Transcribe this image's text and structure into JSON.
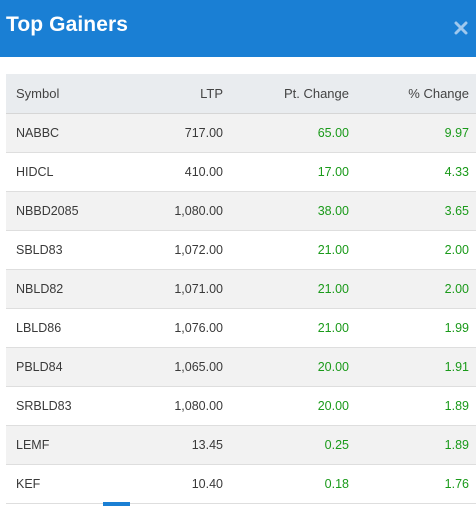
{
  "header": {
    "title": "Top Gainers",
    "close_icon": "close-icon"
  },
  "colors": {
    "header_bg": "#1a7fd4",
    "positive": "#1a9a1a",
    "row_alt": "#f2f2f2",
    "thead_bg": "#e9ecef"
  },
  "table": {
    "columns": [
      "Symbol",
      "LTP",
      "Pt. Change",
      "% Change"
    ],
    "rows": [
      {
        "symbol": "NABBC",
        "ltp": "717.00",
        "pt_change": "65.00",
        "pct_change": "9.97"
      },
      {
        "symbol": "HIDCL",
        "ltp": "410.00",
        "pt_change": "17.00",
        "pct_change": "4.33"
      },
      {
        "symbol": "NBBD2085",
        "ltp": "1,080.00",
        "pt_change": "38.00",
        "pct_change": "3.65"
      },
      {
        "symbol": "SBLD83",
        "ltp": "1,072.00",
        "pt_change": "21.00",
        "pct_change": "2.00"
      },
      {
        "symbol": "NBLD82",
        "ltp": "1,071.00",
        "pt_change": "21.00",
        "pct_change": "2.00"
      },
      {
        "symbol": "LBLD86",
        "ltp": "1,076.00",
        "pt_change": "21.00",
        "pct_change": "1.99"
      },
      {
        "symbol": "PBLD84",
        "ltp": "1,065.00",
        "pt_change": "20.00",
        "pct_change": "1.91"
      },
      {
        "symbol": "SRBLD83",
        "ltp": "1,080.00",
        "pt_change": "20.00",
        "pct_change": "1.89"
      },
      {
        "symbol": "LEMF",
        "ltp": "13.45",
        "pt_change": "0.25",
        "pct_change": "1.89"
      },
      {
        "symbol": "KEF",
        "ltp": "10.40",
        "pt_change": "0.18",
        "pct_change": "1.76"
      }
    ]
  }
}
